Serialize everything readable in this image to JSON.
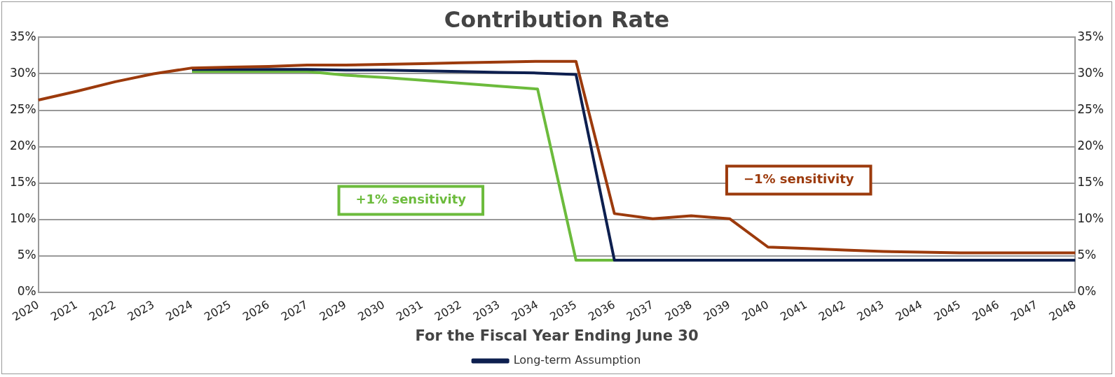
{
  "chart_data": {
    "type": "line",
    "title": "Contribution Rate",
    "xlabel": "For the Fiscal Year Ending June 30",
    "categories": [
      "2020",
      "2021",
      "2022",
      "2023",
      "2024",
      "2025",
      "2026",
      "2027",
      "2029",
      "2030",
      "2031",
      "2032",
      "2033",
      "2034",
      "2035",
      "2036",
      "2037",
      "2038",
      "2039",
      "2040",
      "2041",
      "2042",
      "2043",
      "2044",
      "2045",
      "2046",
      "2047",
      "2048"
    ],
    "series": [
      {
        "name": "Long-term Assumption",
        "color": "#0d1f4f",
        "values": [
          null,
          null,
          null,
          null,
          30.6,
          30.6,
          30.6,
          30.6,
          30.5,
          30.5,
          30.4,
          30.3,
          30.2,
          30.1,
          29.9,
          4.4,
          4.4,
          4.4,
          4.4,
          4.4,
          4.4,
          4.4,
          4.4,
          4.4,
          4.4,
          4.4,
          4.4,
          4.4
        ]
      },
      {
        "name": "+1% sensitivity",
        "color": "#6cbb3c",
        "values": [
          null,
          null,
          null,
          null,
          30.3,
          30.3,
          30.3,
          30.3,
          29.8,
          29.5,
          29.1,
          28.7,
          28.3,
          27.9,
          4.4,
          4.4,
          null,
          null,
          null,
          null,
          null,
          null,
          null,
          null,
          null,
          null,
          null,
          null
        ]
      },
      {
        "name": "−1% sensitivity",
        "color": "#9c3a0c",
        "values": [
          26.4,
          27.6,
          28.9,
          30.0,
          30.8,
          30.9,
          31.0,
          31.2,
          31.2,
          31.3,
          31.4,
          31.5,
          31.6,
          31.7,
          31.7,
          10.8,
          10.1,
          10.5,
          10.1,
          6.2,
          6.0,
          5.8,
          5.6,
          5.5,
          5.4,
          5.4,
          5.4,
          5.4
        ]
      }
    ],
    "ylim": [
      0,
      35
    ],
    "yticks": [
      {
        "value": 0,
        "label": "0%"
      },
      {
        "value": 5,
        "label": "5%"
      },
      {
        "value": 10,
        "label": "10%"
      },
      {
        "value": 15,
        "label": "15%"
      },
      {
        "value": 20,
        "label": "20%"
      },
      {
        "value": 25,
        "label": "25%"
      },
      {
        "value": 30,
        "label": "30%"
      },
      {
        "value": 35,
        "label": "35%"
      }
    ],
    "y2lim": [
      0,
      35
    ],
    "y2ticks": [
      {
        "value": 0,
        "label": "0%"
      },
      {
        "value": 5,
        "label": "5%"
      },
      {
        "value": 10,
        "label": "10%"
      },
      {
        "value": 15,
        "label": "15%"
      },
      {
        "value": 20,
        "label": "20%"
      },
      {
        "value": 25,
        "label": "25%"
      },
      {
        "value": 30,
        "label": "30%"
      },
      {
        "value": 35,
        "label": "35%"
      }
    ],
    "grid": "y",
    "legend": "bottom",
    "marker": "none",
    "line_style": "solid"
  }
}
